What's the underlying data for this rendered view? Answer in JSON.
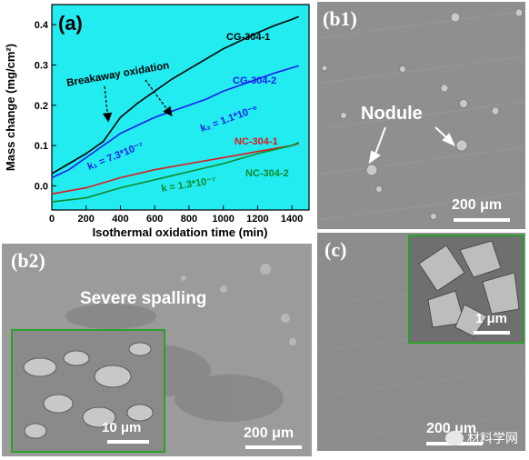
{
  "colors": {
    "plot_background": "#22ecf0",
    "CG-304-1": "#000000",
    "CG-304-2": "#1d1df0",
    "NC-304-1": "#e01818",
    "NC-304-2": "#0f8a2a"
  },
  "chart_data": {
    "type": "line",
    "panel_label": "(a)",
    "xlabel": "Isothermal oxidation time (min)",
    "ylabel": "Mass change (mg/cm²)",
    "xlim": [
      0,
      1500
    ],
    "ylim": [
      -0.06,
      0.45
    ],
    "xticks": [
      "0",
      "200",
      "400",
      "600",
      "800",
      "1000",
      "1200",
      "1400"
    ],
    "yticks": [
      "0.0",
      "0.1",
      "0.2",
      "0.3",
      "0.4"
    ],
    "series": [
      {
        "name": "CG-304-1",
        "x": [
          0,
          100,
          200,
          300,
          350,
          400,
          500,
          600,
          700,
          800,
          900,
          1000,
          1100,
          1200,
          1300,
          1400,
          1440
        ],
        "y": [
          0.03,
          0.055,
          0.08,
          0.11,
          0.14,
          0.17,
          0.205,
          0.235,
          0.265,
          0.29,
          0.315,
          0.34,
          0.36,
          0.38,
          0.398,
          0.413,
          0.42
        ]
      },
      {
        "name": "CG-304-2",
        "x": [
          0,
          100,
          200,
          300,
          400,
          500,
          600,
          700,
          800,
          900,
          1000,
          1100,
          1200,
          1300,
          1400,
          1440
        ],
        "y": [
          0.02,
          0.04,
          0.07,
          0.1,
          0.13,
          0.15,
          0.17,
          0.185,
          0.2,
          0.215,
          0.235,
          0.25,
          0.265,
          0.28,
          0.293,
          0.298
        ]
      },
      {
        "name": "NC-304-1",
        "x": [
          0,
          200,
          400,
          600,
          800,
          1000,
          1200,
          1400,
          1440
        ],
        "y": [
          -0.02,
          -0.005,
          0.02,
          0.04,
          0.055,
          0.07,
          0.085,
          0.1,
          0.105
        ]
      },
      {
        "name": "NC-304-2",
        "x": [
          0,
          200,
          400,
          600,
          800,
          1000,
          1200,
          1400,
          1440
        ],
        "y": [
          -0.04,
          -0.03,
          -0.005,
          0.015,
          0.035,
          0.055,
          0.08,
          0.1,
          0.108
        ]
      }
    ],
    "annotations": [
      {
        "text": "Breakaway oxidation"
      },
      {
        "text": "k₁ = 7.3*10⁻⁷"
      },
      {
        "text": "k₂ = 1.1*10⁻⁶"
      },
      {
        "text": "k = 1.3*10⁻⁷"
      }
    ]
  },
  "panels": {
    "b1": {
      "label": "(b1)",
      "annotation": "Nodule",
      "scale": "200 μm"
    },
    "b2": {
      "label": "(b2)",
      "annotation": "Severe spalling",
      "scale": "200 μm",
      "inset_scale": "10 μm"
    },
    "c": {
      "label": "(c)",
      "scale": "200 μm",
      "inset_scale": "1 μm"
    }
  },
  "watermark": "材料学网"
}
